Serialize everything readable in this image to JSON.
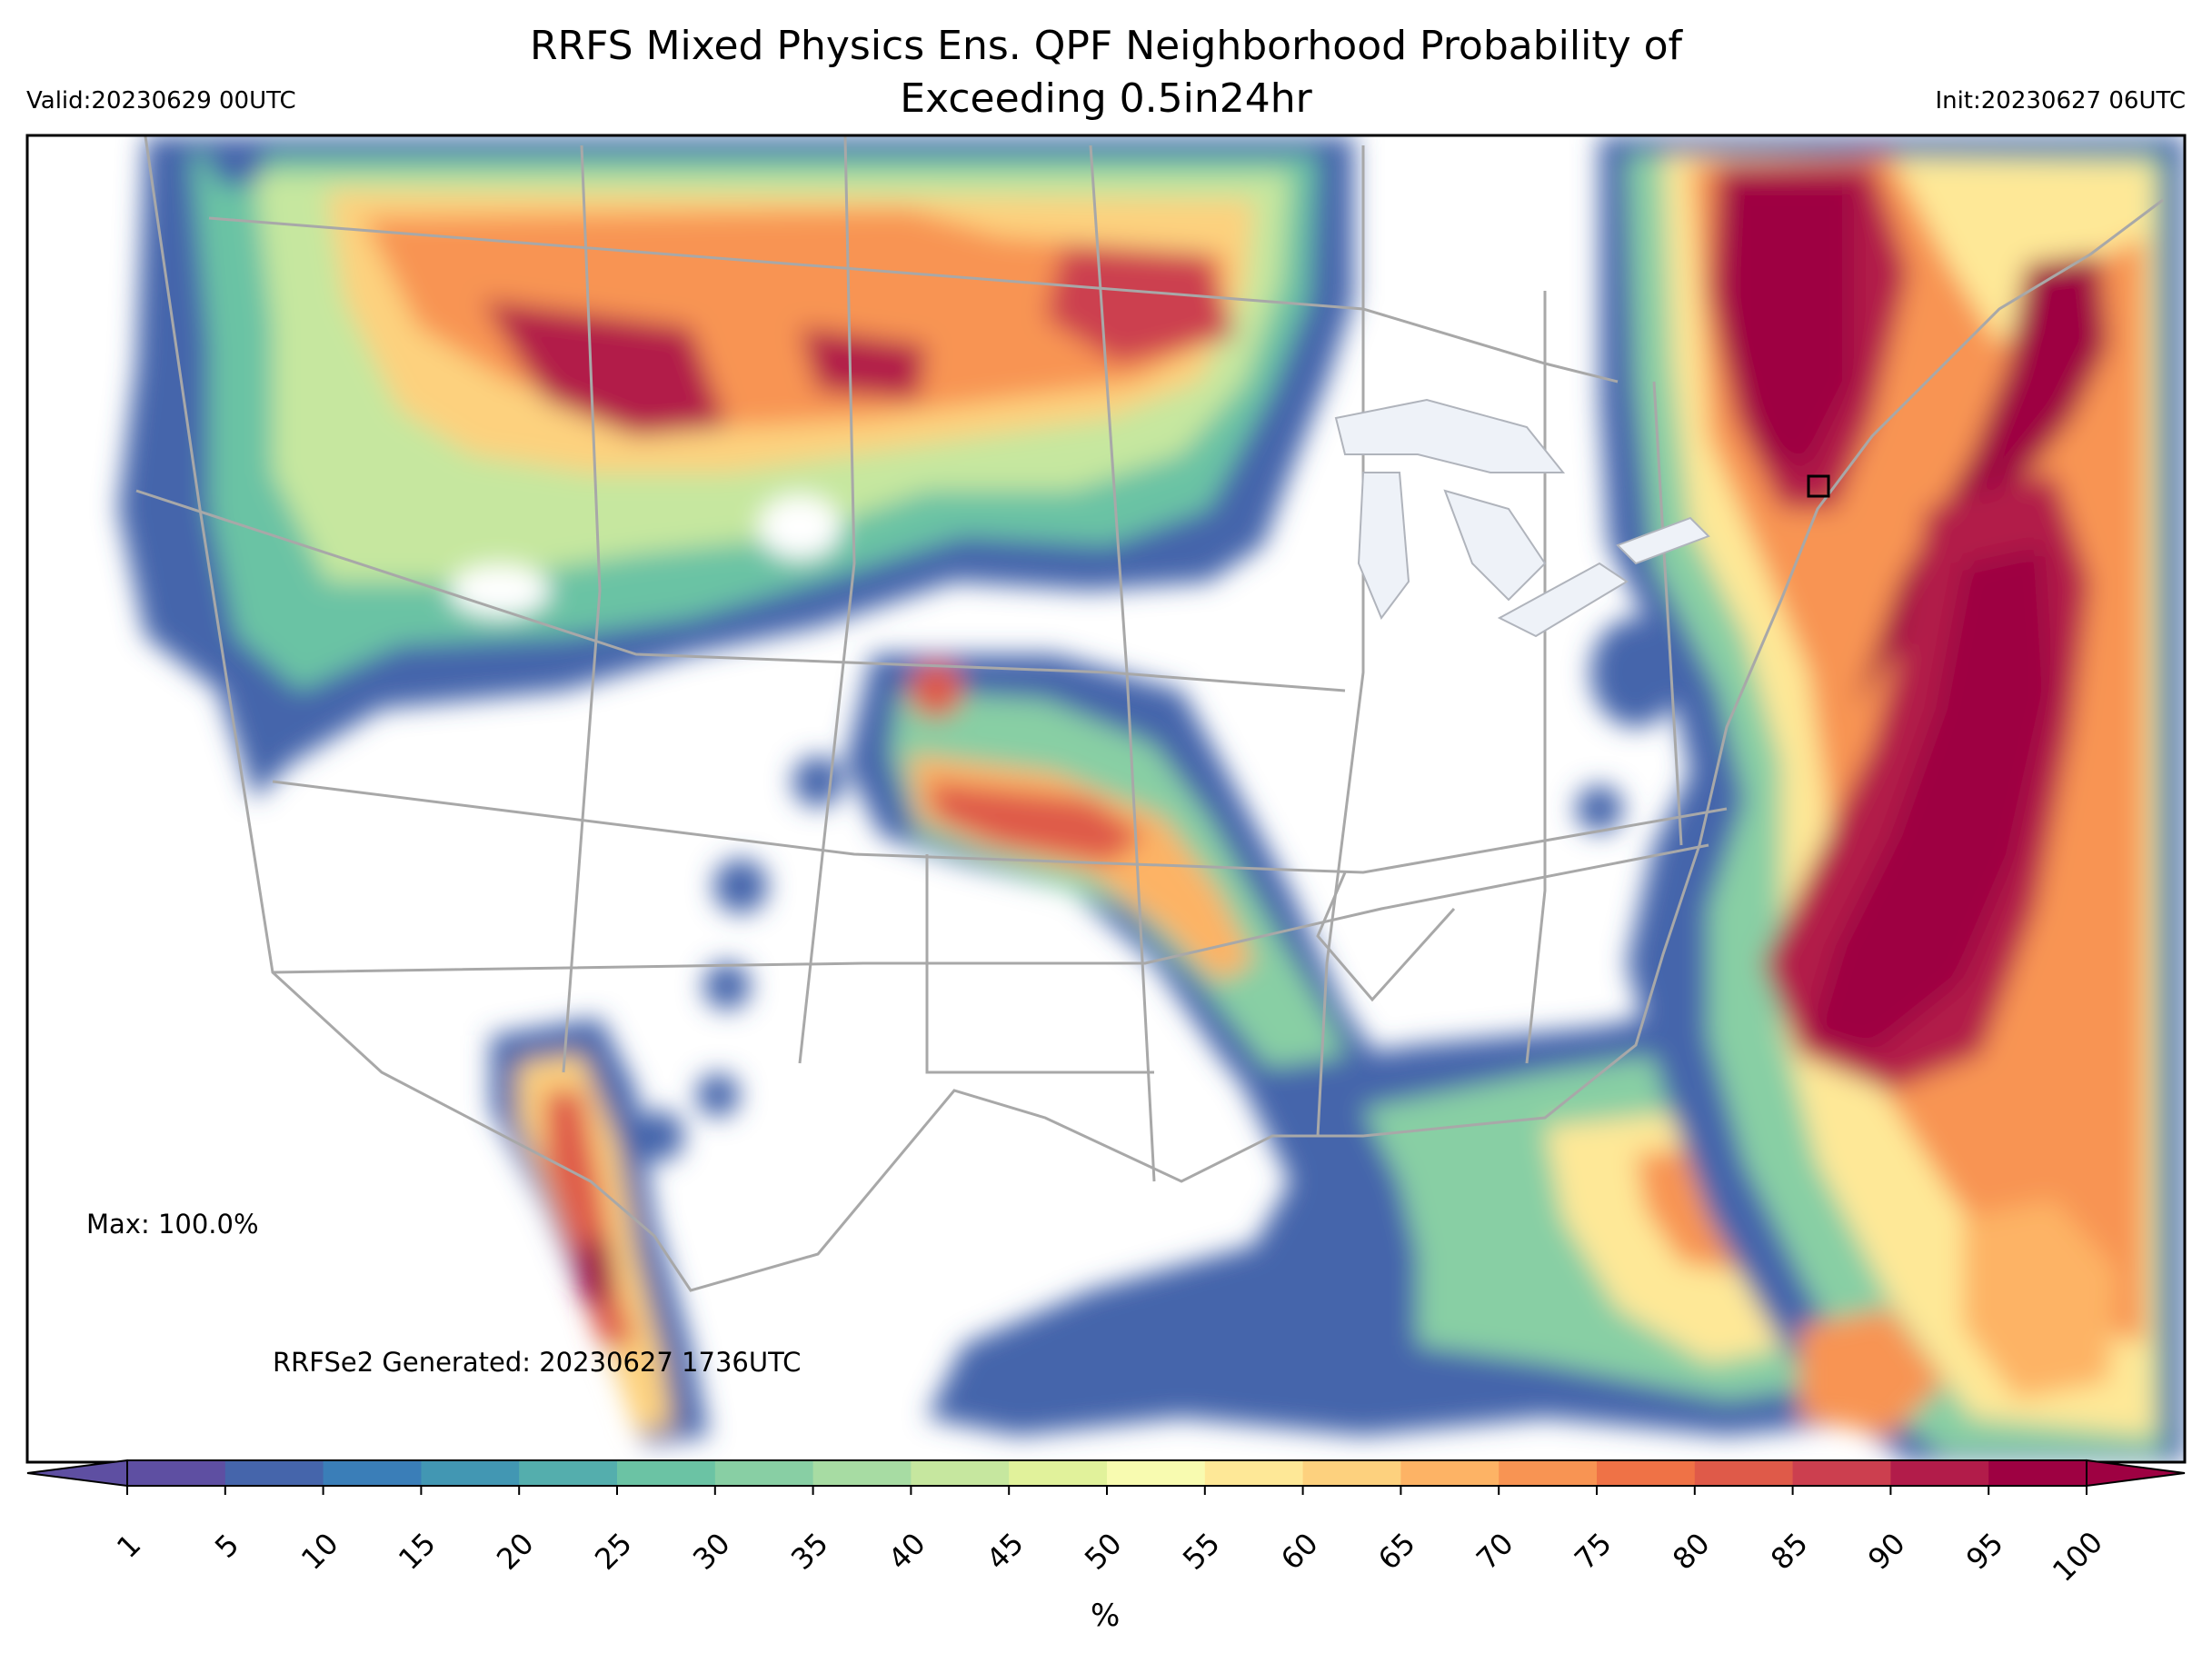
{
  "title_line1": "RRFS Mixed Physics Ens. QPF Neighborhood Probability of",
  "title_line2": "Exceeding 0.5in24hr",
  "valid": "Valid:20230629 00UTC",
  "init": "Init:20230627 06UTC",
  "max_label": "Max: 100.0%",
  "generated_label": "RRFSe2 Generated: 20230627 1736UTC",
  "colorbar": {
    "units": "%",
    "ticks": [
      "1",
      "5",
      "10",
      "15",
      "20",
      "25",
      "30",
      "35",
      "40",
      "45",
      "50",
      "55",
      "60",
      "65",
      "70",
      "75",
      "80",
      "85",
      "90",
      "95",
      "100"
    ],
    "colors": [
      "#5e4fa2",
      "#4565ab",
      "#3a7eb8",
      "#4297b3",
      "#54aead",
      "#6bc3a4",
      "#88cfa4",
      "#a7dca3",
      "#c6e79f",
      "#e1f29b",
      "#f8fbb0",
      "#fee897",
      "#fdd17e",
      "#fdb365",
      "#f89453",
      "#ef7246",
      "#df5a49",
      "#cc3f4f",
      "#b21c4a",
      "#9e0142"
    ]
  },
  "map_style": {
    "land_bg": "#ffffff",
    "border_color": "#9a9a9a",
    "lake_color": "#eef2f8"
  }
}
